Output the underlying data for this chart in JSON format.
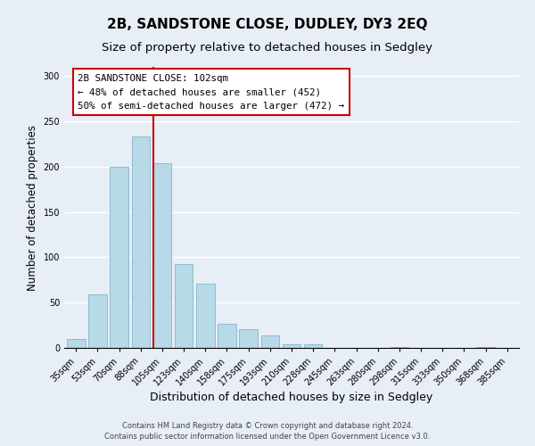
{
  "title": "2B, SANDSTONE CLOSE, DUDLEY, DY3 2EQ",
  "subtitle": "Size of property relative to detached houses in Sedgley",
  "xlabel": "Distribution of detached houses by size in Sedgley",
  "ylabel": "Number of detached properties",
  "bar_labels": [
    "35sqm",
    "53sqm",
    "70sqm",
    "88sqm",
    "105sqm",
    "123sqm",
    "140sqm",
    "158sqm",
    "175sqm",
    "193sqm",
    "210sqm",
    "228sqm",
    "245sqm",
    "263sqm",
    "280sqm",
    "298sqm",
    "315sqm",
    "333sqm",
    "350sqm",
    "368sqm",
    "385sqm"
  ],
  "bar_values": [
    10,
    59,
    200,
    233,
    204,
    93,
    71,
    27,
    21,
    14,
    4,
    4,
    0,
    0,
    0,
    1,
    0,
    0,
    0,
    1,
    0
  ],
  "bar_color": "#b8d9e8",
  "bar_edge_color": "#7fb5d0",
  "vline_color": "#cc0000",
  "vline_bar_index": 4,
  "ylim": [
    0,
    310
  ],
  "yticks": [
    0,
    50,
    100,
    150,
    200,
    250,
    300
  ],
  "annotation_title": "2B SANDSTONE CLOSE: 102sqm",
  "annotation_line1": "← 48% of detached houses are smaller (452)",
  "annotation_line2": "50% of semi-detached houses are larger (472) →",
  "footer_line1": "Contains HM Land Registry data © Crown copyright and database right 2024.",
  "footer_line2": "Contains public sector information licensed under the Open Government Licence v3.0.",
  "background_color": "#e8eef5",
  "plot_bg_color": "#e8eef5",
  "title_fontsize": 11,
  "subtitle_fontsize": 9.5,
  "xlabel_fontsize": 9,
  "ylabel_fontsize": 8.5,
  "annotation_box_color": "#ffffff",
  "annotation_border_color": "#cc0000",
  "annotation_fontsize": 7.8,
  "footer_fontsize": 6.0,
  "tick_fontsize": 7.0
}
